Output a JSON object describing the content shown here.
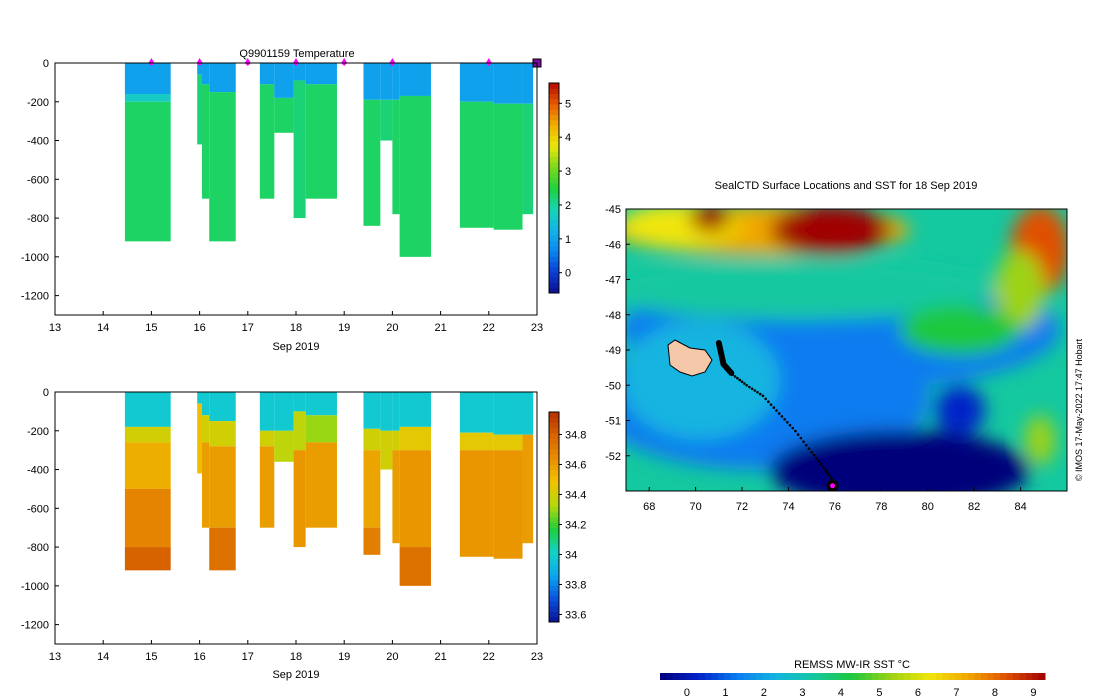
{
  "colors": {
    "temp_scale": [
      "#0a0f8c",
      "#0b3dd6",
      "#0a86f0",
      "#12b4e8",
      "#18d4b4",
      "#1ed23c",
      "#7ed81c",
      "#e8e80a",
      "#f0b000",
      "#e85a00",
      "#b40a00"
    ],
    "sal_scale": [
      "#0a1090",
      "#0a50e0",
      "#0aa8ee",
      "#14d2c8",
      "#1ecf3a",
      "#b4d80c",
      "#f0c400",
      "#e89000",
      "#d86400",
      "#b43000"
    ],
    "sst_scale": [
      "#00007a",
      "#0022c8",
      "#0a7cf0",
      "#14b4e0",
      "#14c8a0",
      "#1ec83c",
      "#9ed214",
      "#f0e60a",
      "#f0a800",
      "#e05000",
      "#a00000"
    ],
    "marker": "#ff00ff"
  },
  "chart_data": [
    {
      "id": "temperature",
      "type": "heatmap",
      "title": "Q9901159  Temperature",
      "xlabel": "Sep 2019",
      "xlim": [
        13,
        23
      ],
      "xticks": [
        "13",
        "14",
        "15",
        "16",
        "17",
        "18",
        "19",
        "20",
        "21",
        "22",
        "23"
      ],
      "ylim": [
        -1300,
        0
      ],
      "yticks": [
        "0",
        "-200",
        "-400",
        "-600",
        "-800",
        "-1000",
        "-1200"
      ],
      "colorbar": {
        "range": [
          -0.6,
          5.6
        ],
        "ticks": [
          "0",
          "1",
          "2",
          "3",
          "4",
          "5"
        ]
      },
      "markers_day": [
        15,
        16,
        17,
        18,
        19,
        20,
        22,
        23
      ],
      "profiles": [
        {
          "x0": 14.45,
          "x1": 15.4,
          "depth": 920,
          "layers": [
            [
              0,
              160,
              1.0
            ],
            [
              160,
              200,
              1.7
            ],
            [
              200,
              920,
              2.3
            ]
          ]
        },
        {
          "x0": 15.95,
          "x1": 16.05,
          "depth": 420,
          "layers": [
            [
              0,
              60,
              1.0
            ],
            [
              60,
              420,
              2.2
            ]
          ]
        },
        {
          "x0": 16.05,
          "x1": 16.2,
          "depth": 700,
          "layers": [
            [
              0,
              110,
              1.0
            ],
            [
              110,
              700,
              2.3
            ]
          ]
        },
        {
          "x0": 16.2,
          "x1": 16.75,
          "depth": 920,
          "layers": [
            [
              0,
              150,
              1.0
            ],
            [
              150,
              920,
              2.3
            ]
          ]
        },
        {
          "x0": 17.25,
          "x1": 17.55,
          "depth": 700,
          "layers": [
            [
              0,
              110,
              1.0
            ],
            [
              110,
              700,
              2.3
            ]
          ]
        },
        {
          "x0": 17.55,
          "x1": 17.95,
          "depth": 360,
          "layers": [
            [
              0,
              180,
              1.0
            ],
            [
              180,
              360,
              2.3
            ]
          ]
        },
        {
          "x0": 17.95,
          "x1": 18.2,
          "depth": 800,
          "layers": [
            [
              0,
              90,
              1.0
            ],
            [
              90,
              800,
              2.2
            ]
          ]
        },
        {
          "x0": 18.2,
          "x1": 18.85,
          "depth": 700,
          "layers": [
            [
              0,
              110,
              1.0
            ],
            [
              110,
              700,
              2.3
            ]
          ]
        },
        {
          "x0": 19.4,
          "x1": 19.75,
          "depth": 840,
          "layers": [
            [
              0,
              190,
              1.0
            ],
            [
              190,
              840,
              2.3
            ]
          ]
        },
        {
          "x0": 19.75,
          "x1": 20.0,
          "depth": 400,
          "layers": [
            [
              0,
              190,
              1.0
            ],
            [
              190,
              400,
              2.2
            ]
          ]
        },
        {
          "x0": 20.0,
          "x1": 20.15,
          "depth": 780,
          "layers": [
            [
              0,
              190,
              1.0
            ],
            [
              190,
              780,
              2.3
            ]
          ]
        },
        {
          "x0": 20.15,
          "x1": 20.8,
          "depth": 1000,
          "layers": [
            [
              0,
              170,
              1.0
            ],
            [
              170,
              1000,
              2.3
            ]
          ]
        },
        {
          "x0": 21.4,
          "x1": 22.1,
          "depth": 850,
          "layers": [
            [
              0,
              200,
              1.0
            ],
            [
              200,
              850,
              2.3
            ]
          ]
        },
        {
          "x0": 22.1,
          "x1": 22.7,
          "depth": 860,
          "layers": [
            [
              0,
              210,
              1.0
            ],
            [
              210,
              860,
              2.3
            ]
          ]
        },
        {
          "x0": 22.7,
          "x1": 22.92,
          "depth": 780,
          "layers": [
            [
              0,
              210,
              1.0
            ],
            [
              210,
              780,
              2.2
            ]
          ]
        }
      ]
    },
    {
      "id": "salinity",
      "type": "heatmap",
      "title": "",
      "xlabel": "Sep 2019",
      "xlim": [
        13,
        23
      ],
      "xticks": [
        "13",
        "14",
        "15",
        "16",
        "17",
        "18",
        "19",
        "20",
        "21",
        "22",
        "23"
      ],
      "ylim": [
        -1300,
        0
      ],
      "yticks": [
        "0",
        "-200",
        "-400",
        "-600",
        "-800",
        "-1000",
        "-1200"
      ],
      "colorbar": {
        "range": [
          33.55,
          34.95
        ],
        "ticks": [
          "33.6",
          "33.8",
          "34",
          "34.2",
          "34.4",
          "34.6",
          "34.8"
        ]
      },
      "profiles": [
        {
          "x0": 14.45,
          "x1": 15.4,
          "depth": 920,
          "layers": [
            [
              0,
              180,
              33.98
            ],
            [
              180,
              260,
              34.4
            ],
            [
              260,
              500,
              34.55
            ],
            [
              500,
              800,
              34.68
            ],
            [
              800,
              920,
              34.8
            ]
          ]
        },
        {
          "x0": 15.95,
          "x1": 16.05,
          "depth": 420,
          "layers": [
            [
              0,
              60,
              33.98
            ],
            [
              60,
              420,
              34.5
            ]
          ]
        },
        {
          "x0": 16.05,
          "x1": 16.2,
          "depth": 700,
          "layers": [
            [
              0,
              120,
              33.98
            ],
            [
              120,
              260,
              34.4
            ],
            [
              260,
              700,
              34.6
            ]
          ]
        },
        {
          "x0": 16.2,
          "x1": 16.75,
          "depth": 920,
          "layers": [
            [
              0,
              150,
              33.98
            ],
            [
              150,
              280,
              34.4
            ],
            [
              280,
              700,
              34.6
            ],
            [
              700,
              920,
              34.75
            ]
          ]
        },
        {
          "x0": 17.25,
          "x1": 17.55,
          "depth": 700,
          "layers": [
            [
              0,
              200,
              33.98
            ],
            [
              200,
              280,
              34.4
            ],
            [
              280,
              700,
              34.6
            ]
          ]
        },
        {
          "x0": 17.55,
          "x1": 17.95,
          "depth": 360,
          "layers": [
            [
              0,
              200,
              33.98
            ],
            [
              200,
              360,
              34.35
            ]
          ]
        },
        {
          "x0": 17.95,
          "x1": 18.2,
          "depth": 800,
          "layers": [
            [
              0,
              100,
              33.98
            ],
            [
              100,
              300,
              34.35
            ],
            [
              300,
              800,
              34.62
            ]
          ]
        },
        {
          "x0": 18.2,
          "x1": 18.85,
          "depth": 700,
          "layers": [
            [
              0,
              120,
              33.98
            ],
            [
              120,
              260,
              34.3
            ],
            [
              260,
              700,
              34.6
            ]
          ]
        },
        {
          "x0": 19.4,
          "x1": 19.75,
          "depth": 840,
          "layers": [
            [
              0,
              190,
              33.98
            ],
            [
              190,
              300,
              34.4
            ],
            [
              300,
              700,
              34.58
            ],
            [
              700,
              840,
              34.7
            ]
          ]
        },
        {
          "x0": 19.75,
          "x1": 20.0,
          "depth": 400,
          "layers": [
            [
              0,
              200,
              33.98
            ],
            [
              200,
              400,
              34.4
            ]
          ]
        },
        {
          "x0": 20.0,
          "x1": 20.15,
          "depth": 780,
          "layers": [
            [
              0,
              200,
              33.98
            ],
            [
              200,
              300,
              34.4
            ],
            [
              300,
              780,
              34.6
            ]
          ]
        },
        {
          "x0": 20.15,
          "x1": 20.8,
          "depth": 1000,
          "layers": [
            [
              0,
              180,
              33.98
            ],
            [
              180,
              300,
              34.45
            ],
            [
              300,
              800,
              34.62
            ],
            [
              800,
              1000,
              34.75
            ]
          ]
        },
        {
          "x0": 21.4,
          "x1": 22.1,
          "depth": 850,
          "layers": [
            [
              0,
              210,
              33.98
            ],
            [
              210,
              300,
              34.45
            ],
            [
              300,
              850,
              34.62
            ]
          ]
        },
        {
          "x0": 22.1,
          "x1": 22.7,
          "depth": 860,
          "layers": [
            [
              0,
              220,
              33.98
            ],
            [
              220,
              300,
              34.45
            ],
            [
              300,
              860,
              34.62
            ]
          ]
        },
        {
          "x0": 22.7,
          "x1": 22.92,
          "depth": 780,
          "layers": [
            [
              0,
              220,
              33.98
            ],
            [
              220,
              780,
              34.6
            ]
          ]
        }
      ]
    },
    {
      "id": "sst-map",
      "type": "heatmap",
      "title": "SealCTD Surface Locations and SST for 18 Sep 2019",
      "xlim": [
        67,
        86
      ],
      "xticks": [
        "68",
        "70",
        "72",
        "74",
        "76",
        "78",
        "80",
        "82",
        "84"
      ],
      "ylim": [
        -53,
        -45
      ],
      "yticks": [
        "-45",
        "-46",
        "-47",
        "-48",
        "-49",
        "-50",
        "-51",
        "-52"
      ],
      "colorbar": {
        "label": "REMSS MW-IR SST °C",
        "range": [
          -0.7,
          9.3
        ],
        "ticks": [
          "0",
          "1",
          "2",
          "3",
          "4",
          "5",
          "6",
          "7",
          "8",
          "9"
        ]
      },
      "credit": "© IMOS 17-May-2022 17:47 Hobart",
      "track": [
        [
          71.0,
          -48.8
        ],
        [
          71.1,
          -49.1
        ],
        [
          71.2,
          -49.4
        ],
        [
          71.6,
          -49.7
        ],
        [
          72.2,
          -50.0
        ],
        [
          72.9,
          -50.3
        ],
        [
          73.6,
          -50.8
        ],
        [
          74.3,
          -51.3
        ],
        [
          75.0,
          -51.9
        ],
        [
          75.6,
          -52.4
        ],
        [
          76.0,
          -52.8
        ]
      ],
      "current_position": [
        75.9,
        -52.85
      ]
    }
  ]
}
